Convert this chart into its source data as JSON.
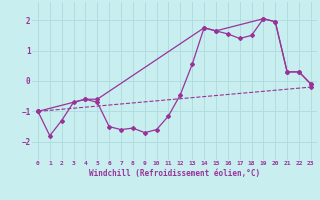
{
  "xlabel": "Windchill (Refroidissement éolien,°C)",
  "bg_color": "#c8eef0",
  "grid_color": "#b0dde0",
  "line_color": "#993399",
  "xlim": [
    -0.5,
    23.5
  ],
  "ylim": [
    -2.6,
    2.6
  ],
  "yticks": [
    -2,
    -1,
    0,
    1,
    2
  ],
  "xticks": [
    0,
    1,
    2,
    3,
    4,
    5,
    6,
    7,
    8,
    9,
    10,
    11,
    12,
    13,
    14,
    15,
    16,
    17,
    18,
    19,
    20,
    21,
    22,
    23
  ],
  "series_jagged_x": [
    0,
    1,
    2,
    3,
    4,
    5,
    6,
    7,
    8,
    9,
    10,
    11,
    12,
    13,
    14,
    15,
    16,
    17,
    18,
    19,
    20,
    21,
    22,
    23
  ],
  "series_jagged_y": [
    -1.0,
    -1.8,
    -1.3,
    -0.7,
    -0.6,
    -0.7,
    -1.5,
    -1.6,
    -1.55,
    -1.7,
    -1.6,
    -1.15,
    -0.45,
    0.55,
    1.75,
    1.65,
    1.55,
    1.4,
    1.5,
    2.05,
    1.95,
    0.3,
    0.3,
    -0.1
  ],
  "series_diagonal_x": [
    0,
    4,
    5,
    14,
    15,
    19,
    20,
    21,
    22,
    23
  ],
  "series_diagonal_y": [
    -1.0,
    -0.6,
    -0.6,
    1.75,
    1.65,
    2.05,
    1.95,
    0.3,
    0.3,
    -0.1
  ],
  "trend_x": [
    0,
    23
  ],
  "trend_y": [
    -1.0,
    -0.2
  ]
}
